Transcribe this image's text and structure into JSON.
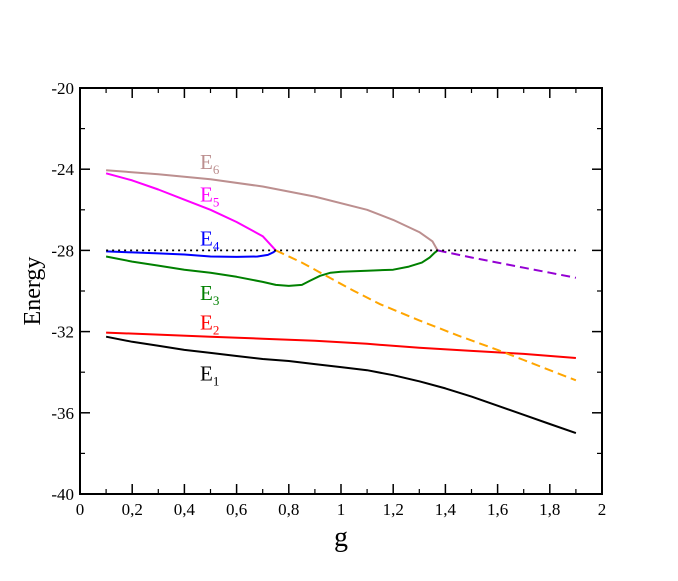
{
  "chart_data": {
    "type": "line",
    "xlabel": "g",
    "ylabel": "Energy",
    "xlim": [
      0,
      2
    ],
    "ylim": [
      -40,
      -20
    ],
    "xticks": [
      {
        "v": 0,
        "label": "0"
      },
      {
        "v": 0.2,
        "label": "0,2"
      },
      {
        "v": 0.4,
        "label": "0,4"
      },
      {
        "v": 0.6,
        "label": "0,6"
      },
      {
        "v": 0.8,
        "label": "0,8"
      },
      {
        "v": 1,
        "label": "1"
      },
      {
        "v": 1.2,
        "label": "1,2"
      },
      {
        "v": 1.4,
        "label": "1,4"
      },
      {
        "v": 1.6,
        "label": "1,6"
      },
      {
        "v": 1.8,
        "label": "1,8"
      },
      {
        "v": 2,
        "label": "2"
      }
    ],
    "yticks": [
      {
        "v": -20,
        "label": "-20"
      },
      {
        "v": -24,
        "label": "-24"
      },
      {
        "v": -28,
        "label": "-28"
      },
      {
        "v": -32,
        "label": "-32"
      },
      {
        "v": -36,
        "label": "-36"
      },
      {
        "v": -40,
        "label": "-40"
      }
    ],
    "grid": false,
    "series": [
      {
        "name": "E1",
        "color": "#000000",
        "style": "solid",
        "points": [
          [
            0.1,
            -32.25
          ],
          [
            0.2,
            -32.5
          ],
          [
            0.3,
            -32.7
          ],
          [
            0.4,
            -32.9
          ],
          [
            0.5,
            -33.05
          ],
          [
            0.6,
            -33.2
          ],
          [
            0.7,
            -33.35
          ],
          [
            0.8,
            -33.45
          ],
          [
            0.9,
            -33.6
          ],
          [
            1.0,
            -33.75
          ],
          [
            1.1,
            -33.9
          ],
          [
            1.2,
            -34.15
          ],
          [
            1.3,
            -34.45
          ],
          [
            1.4,
            -34.8
          ],
          [
            1.5,
            -35.2
          ],
          [
            1.6,
            -35.65
          ],
          [
            1.7,
            -36.1
          ],
          [
            1.8,
            -36.55
          ],
          [
            1.9,
            -37.0
          ]
        ]
      },
      {
        "name": "E2",
        "color": "#ff0000",
        "style": "solid",
        "points": [
          [
            0.1,
            -32.05
          ],
          [
            0.3,
            -32.15
          ],
          [
            0.5,
            -32.25
          ],
          [
            0.7,
            -32.35
          ],
          [
            0.9,
            -32.45
          ],
          [
            1.1,
            -32.6
          ],
          [
            1.3,
            -32.8
          ],
          [
            1.5,
            -32.95
          ],
          [
            1.7,
            -33.1
          ],
          [
            1.9,
            -33.3
          ]
        ]
      },
      {
        "name": "E3",
        "color": "#008000",
        "style": "solid",
        "points": [
          [
            0.1,
            -28.3
          ],
          [
            0.2,
            -28.55
          ],
          [
            0.3,
            -28.75
          ],
          [
            0.4,
            -28.95
          ],
          [
            0.5,
            -29.1
          ],
          [
            0.6,
            -29.3
          ],
          [
            0.7,
            -29.55
          ],
          [
            0.75,
            -29.7
          ],
          [
            0.8,
            -29.75
          ],
          [
            0.85,
            -29.7
          ],
          [
            0.88,
            -29.5
          ],
          [
            0.92,
            -29.25
          ],
          [
            0.96,
            -29.1
          ],
          [
            1.0,
            -29.05
          ],
          [
            1.1,
            -29.0
          ],
          [
            1.2,
            -28.95
          ],
          [
            1.26,
            -28.8
          ],
          [
            1.31,
            -28.6
          ],
          [
            1.34,
            -28.35
          ],
          [
            1.36,
            -28.1
          ],
          [
            1.37,
            -28.0
          ]
        ]
      },
      {
        "name": "E4",
        "color": "#0000ff",
        "style": "solid",
        "points": [
          [
            0.1,
            -28.05
          ],
          [
            0.2,
            -28.1
          ],
          [
            0.3,
            -28.15
          ],
          [
            0.4,
            -28.2
          ],
          [
            0.5,
            -28.3
          ],
          [
            0.6,
            -28.32
          ],
          [
            0.68,
            -28.3
          ],
          [
            0.72,
            -28.22
          ],
          [
            0.74,
            -28.1
          ],
          [
            0.75,
            -28.0
          ]
        ]
      },
      {
        "name": "E5",
        "color": "#ff00ff",
        "style": "solid",
        "points": [
          [
            0.1,
            -24.2
          ],
          [
            0.2,
            -24.55
          ],
          [
            0.3,
            -25.0
          ],
          [
            0.4,
            -25.5
          ],
          [
            0.5,
            -26.0
          ],
          [
            0.6,
            -26.6
          ],
          [
            0.7,
            -27.3
          ],
          [
            0.75,
            -28.0
          ]
        ]
      },
      {
        "name": "E6",
        "color": "#bc8f8f",
        "style": "solid",
        "points": [
          [
            0.1,
            -24.05
          ],
          [
            0.3,
            -24.25
          ],
          [
            0.5,
            -24.5
          ],
          [
            0.7,
            -24.85
          ],
          [
            0.9,
            -25.35
          ],
          [
            1.1,
            -26.0
          ],
          [
            1.2,
            -26.5
          ],
          [
            1.3,
            -27.1
          ],
          [
            1.35,
            -27.55
          ],
          [
            1.37,
            -28.0
          ]
        ]
      },
      {
        "name": "",
        "color": "#ffa500",
        "style": "dashed",
        "points": [
          [
            0.75,
            -28.0
          ],
          [
            0.85,
            -28.6
          ],
          [
            0.95,
            -29.3
          ],
          [
            1.05,
            -30.0
          ],
          [
            1.15,
            -30.65
          ],
          [
            1.3,
            -31.45
          ],
          [
            1.45,
            -32.2
          ],
          [
            1.6,
            -32.9
          ],
          [
            1.7,
            -33.4
          ],
          [
            1.8,
            -33.9
          ],
          [
            1.9,
            -34.4
          ]
        ]
      },
      {
        "name": "",
        "color": "#9400d3",
        "style": "dashed",
        "points": [
          [
            1.37,
            -28.0
          ],
          [
            1.5,
            -28.35
          ],
          [
            1.6,
            -28.6
          ],
          [
            1.7,
            -28.85
          ],
          [
            1.8,
            -29.1
          ],
          [
            1.9,
            -29.35
          ]
        ]
      },
      {
        "name": "",
        "color": "#000000",
        "style": "dotted",
        "points": [
          [
            0.1,
            -28.0
          ],
          [
            1.9,
            -28.0
          ]
        ]
      }
    ],
    "annotations": [
      {
        "base": "E",
        "sub": "1",
        "color": "#000000",
        "x": 0.46,
        "y": -34.4
      },
      {
        "base": "E",
        "sub": "2",
        "color": "#ff0000",
        "x": 0.46,
        "y": -31.9
      },
      {
        "base": "E",
        "sub": "3",
        "color": "#008000",
        "x": 0.46,
        "y": -30.45
      },
      {
        "base": "E",
        "sub": "4",
        "color": "#0000ff",
        "x": 0.46,
        "y": -27.75
      },
      {
        "base": "E",
        "sub": "5",
        "color": "#ff00ff",
        "x": 0.46,
        "y": -25.6
      },
      {
        "base": "E",
        "sub": "6",
        "color": "#bc8f8f",
        "x": 0.46,
        "y": -24.0
      }
    ]
  }
}
